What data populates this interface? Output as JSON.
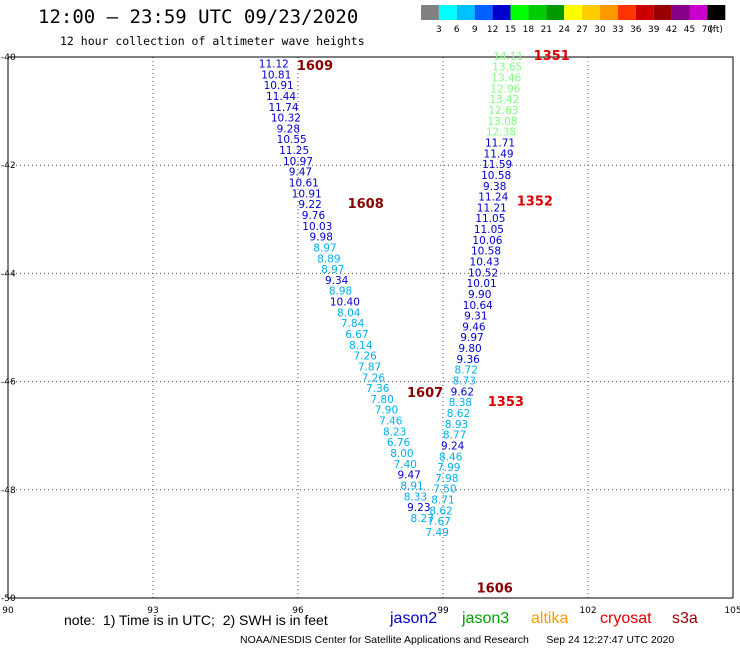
{
  "title": "12:00 – 23:59 UTC 09/23/2020",
  "subtitle": "12 hour collection of altimeter wave heights",
  "note": "note:  1) Time is in UTC;  2) SWH is in feet",
  "credit": "NOAA/NESDIS Center for Satellite Applications and Research      Sep 24 12:27:47 UTC 2020",
  "satellites": [
    {
      "name": "jason2",
      "color": "#0000cc"
    },
    {
      "name": "jason3",
      "color": "#00a000"
    },
    {
      "name": "altika",
      "color": "#ff9900"
    },
    {
      "name": "cryosat",
      "color": "#e00000"
    },
    {
      "name": "s3a",
      "color": "#990000"
    }
  ],
  "chart_data": {
    "type": "scatter",
    "title": "12:00 – 23:59 UTC 09/23/2020",
    "subtitle": "12 hour collection of altimeter wave heights",
    "x_ticks": [
      90,
      93,
      96,
      99,
      102,
      105
    ],
    "y_ticks": [
      -40,
      -42,
      -44,
      -46,
      -48,
      -50
    ],
    "xlim": [
      90,
      105
    ],
    "ylim": [
      -50,
      -40
    ],
    "grid": true,
    "colorbar": {
      "unit": "(ft)",
      "labels": [
        "3",
        "6",
        "9",
        "12",
        "15",
        "18",
        "21",
        "24",
        "27",
        "30",
        "33",
        "36",
        "39",
        "42",
        "45",
        "70"
      ],
      "colors": [
        "#808080",
        "#00ffff",
        "#00c0ff",
        "#0060ff",
        "#0000cc",
        "#00ff00",
        "#00cc00",
        "#009900",
        "#ffff00",
        "#ffcc00",
        "#ff9900",
        "#ff3300",
        "#cc0000",
        "#990000",
        "#880088",
        "#cc00cc",
        "#000000"
      ]
    },
    "passes": [
      {
        "label": "1609",
        "lon": 96.35,
        "lat": -40.17,
        "color": "#880000"
      },
      {
        "label": "1608",
        "lon": 97.4,
        "lat": -42.72,
        "color": "#880000"
      },
      {
        "label": "1607",
        "lon": 98.63,
        "lat": -46.21,
        "color": "#880000"
      },
      {
        "label": "1606",
        "lon": 100.07,
        "lat": -49.82,
        "color": "#880000"
      },
      {
        "label": "1351",
        "lon": 101.25,
        "lat": -39.98,
        "color": "#dd0000"
      },
      {
        "label": "1352",
        "lon": 100.9,
        "lat": -42.67,
        "color": "#dd0000"
      },
      {
        "label": "1353",
        "lon": 100.3,
        "lat": -46.38,
        "color": "#dd0000"
      }
    ],
    "tracks": [
      {
        "name": "track-1608-1609",
        "points": [
          {
            "lon": 95.5,
            "lat": -40.12,
            "v": "11.12",
            "c": "#0000cc"
          },
          {
            "lon": 95.55,
            "lat": -40.32,
            "v": "10.81",
            "c": "#0000cc"
          },
          {
            "lon": 95.6,
            "lat": -40.52,
            "v": "10.91",
            "c": "#0000cc"
          },
          {
            "lon": 95.65,
            "lat": -40.72,
            "v": "11.44",
            "c": "#0000cc"
          },
          {
            "lon": 95.7,
            "lat": -40.92,
            "v": "11.74",
            "c": "#0000cc"
          },
          {
            "lon": 95.75,
            "lat": -41.12,
            "v": "10.32",
            "c": "#0000cc"
          },
          {
            "lon": 95.8,
            "lat": -41.32,
            "v": "9.28",
            "c": "#0000cc"
          },
          {
            "lon": 95.87,
            "lat": -41.52,
            "v": "10.55",
            "c": "#0000cc"
          },
          {
            "lon": 95.92,
            "lat": -41.72,
            "v": "11.25",
            "c": "#0000cc"
          },
          {
            "lon": 96.0,
            "lat": -41.92,
            "v": "10.97",
            "c": "#0000cc"
          },
          {
            "lon": 96.05,
            "lat": -42.12,
            "v": "9.47",
            "c": "#0000cc"
          },
          {
            "lon": 96.12,
            "lat": -42.32,
            "v": "10.61",
            "c": "#0000cc"
          },
          {
            "lon": 96.18,
            "lat": -42.52,
            "v": "10.91",
            "c": "#0000cc"
          },
          {
            "lon": 96.25,
            "lat": -42.72,
            "v": "9.22",
            "c": "#0000cc"
          },
          {
            "lon": 96.32,
            "lat": -42.92,
            "v": "9.76",
            "c": "#0000cc"
          },
          {
            "lon": 96.4,
            "lat": -43.12,
            "v": "10.03",
            "c": "#0000cc"
          },
          {
            "lon": 96.48,
            "lat": -43.32,
            "v": "9.98",
            "c": "#0000cc"
          },
          {
            "lon": 96.56,
            "lat": -43.52,
            "v": "8.97",
            "c": "#00b0ee"
          },
          {
            "lon": 96.64,
            "lat": -43.72,
            "v": "8.89",
            "c": "#00b0ee"
          },
          {
            "lon": 96.72,
            "lat": -43.92,
            "v": "8.97",
            "c": "#00b0ee"
          },
          {
            "lon": 96.8,
            "lat": -44.12,
            "v": "9.34",
            "c": "#0000cc"
          },
          {
            "lon": 96.88,
            "lat": -44.32,
            "v": "8.98",
            "c": "#00b0ee"
          },
          {
            "lon": 96.97,
            "lat": -44.52,
            "v": "10.40",
            "c": "#0000cc"
          },
          {
            "lon": 97.05,
            "lat": -44.72,
            "v": "8.04",
            "c": "#00b0ee"
          },
          {
            "lon": 97.13,
            "lat": -44.92,
            "v": "7.84",
            "c": "#00b0ee"
          },
          {
            "lon": 97.22,
            "lat": -45.12,
            "v": "6.67",
            "c": "#00b0ee"
          },
          {
            "lon": 97.3,
            "lat": -45.32,
            "v": "8.14",
            "c": "#00b0ee"
          },
          {
            "lon": 97.39,
            "lat": -45.52,
            "v": "7.26",
            "c": "#00b0ee"
          },
          {
            "lon": 97.48,
            "lat": -45.72,
            "v": "7.87",
            "c": "#00b0ee"
          },
          {
            "lon": 97.56,
            "lat": -45.92,
            "v": "7.26",
            "c": "#00b0ee"
          },
          {
            "lon": 97.65,
            "lat": -46.12,
            "v": "7.36",
            "c": "#00b0ee"
          },
          {
            "lon": 97.74,
            "lat": -46.32,
            "v": "7.80",
            "c": "#00b0ee"
          },
          {
            "lon": 97.83,
            "lat": -46.52,
            "v": "7.90",
            "c": "#00b0ee"
          },
          {
            "lon": 97.92,
            "lat": -46.72,
            "v": "7.46",
            "c": "#00b0ee"
          },
          {
            "lon": 98.0,
            "lat": -46.92,
            "v": "8.23",
            "c": "#00b0ee"
          },
          {
            "lon": 98.08,
            "lat": -47.12,
            "v": "6.76",
            "c": "#00b0ee"
          },
          {
            "lon": 98.15,
            "lat": -47.32,
            "v": "8.00",
            "c": "#00b0ee"
          },
          {
            "lon": 98.22,
            "lat": -47.52,
            "v": "7.40",
            "c": "#00b0ee"
          },
          {
            "lon": 98.3,
            "lat": -47.72,
            "v": "9.47",
            "c": "#0000cc"
          },
          {
            "lon": 98.36,
            "lat": -47.92,
            "v": "8.91",
            "c": "#00b0ee"
          },
          {
            "lon": 98.43,
            "lat": -48.12,
            "v": "8.33",
            "c": "#00b0ee"
          },
          {
            "lon": 98.5,
            "lat": -48.32,
            "v": "9.23",
            "c": "#0000cc"
          },
          {
            "lon": 98.57,
            "lat": -48.52,
            "v": "8.27",
            "c": "#00b0ee"
          }
        ]
      },
      {
        "name": "track-1351-1353",
        "points": [
          {
            "lon": 100.35,
            "lat": -39.98,
            "v": "14.11",
            "c": "#80ff80"
          },
          {
            "lon": 100.33,
            "lat": -40.18,
            "v": "13.65",
            "c": "#80ff80"
          },
          {
            "lon": 100.31,
            "lat": -40.38,
            "v": "13.46",
            "c": "#80ff80"
          },
          {
            "lon": 100.29,
            "lat": -40.58,
            "v": "12.96",
            "c": "#80ff80"
          },
          {
            "lon": 100.27,
            "lat": -40.78,
            "v": "13.42",
            "c": "#80ff80"
          },
          {
            "lon": 100.25,
            "lat": -40.98,
            "v": "12.63",
            "c": "#80ff80"
          },
          {
            "lon": 100.23,
            "lat": -41.18,
            "v": "13.08",
            "c": "#80ff80"
          },
          {
            "lon": 100.2,
            "lat": -41.38,
            "v": "12.38",
            "c": "#80ff80"
          },
          {
            "lon": 100.18,
            "lat": -41.58,
            "v": "11.71",
            "c": "#0000cc"
          },
          {
            "lon": 100.15,
            "lat": -41.78,
            "v": "11.49",
            "c": "#0000cc"
          },
          {
            "lon": 100.12,
            "lat": -41.98,
            "v": "11.59",
            "c": "#0000cc"
          },
          {
            "lon": 100.1,
            "lat": -42.18,
            "v": "10.58",
            "c": "#0000cc"
          },
          {
            "lon": 100.07,
            "lat": -42.38,
            "v": "9.38",
            "c": "#0000cc"
          },
          {
            "lon": 100.04,
            "lat": -42.58,
            "v": "11.24",
            "c": "#0000cc"
          },
          {
            "lon": 100.01,
            "lat": -42.78,
            "v": "11.21",
            "c": "#0000cc"
          },
          {
            "lon": 99.98,
            "lat": -42.98,
            "v": "11.05",
            "c": "#0000cc"
          },
          {
            "lon": 99.95,
            "lat": -43.18,
            "v": "11.05",
            "c": "#0000cc"
          },
          {
            "lon": 99.92,
            "lat": -43.38,
            "v": "10.06",
            "c": "#0000cc"
          },
          {
            "lon": 99.89,
            "lat": -43.58,
            "v": "10.58",
            "c": "#0000cc"
          },
          {
            "lon": 99.86,
            "lat": -43.78,
            "v": "10.43",
            "c": "#0000cc"
          },
          {
            "lon": 99.83,
            "lat": -43.98,
            "v": "10.52",
            "c": "#0000cc"
          },
          {
            "lon": 99.8,
            "lat": -44.18,
            "v": "10.01",
            "c": "#0000cc"
          },
          {
            "lon": 99.76,
            "lat": -44.38,
            "v": "9.90",
            "c": "#0000cc"
          },
          {
            "lon": 99.72,
            "lat": -44.58,
            "v": "10.64",
            "c": "#0000cc"
          },
          {
            "lon": 99.68,
            "lat": -44.78,
            "v": "9.31",
            "c": "#0000cc"
          },
          {
            "lon": 99.64,
            "lat": -44.98,
            "v": "9.46",
            "c": "#0000cc"
          },
          {
            "lon": 99.6,
            "lat": -45.18,
            "v": "9.97",
            "c": "#0000cc"
          },
          {
            "lon": 99.56,
            "lat": -45.38,
            "v": "9.80",
            "c": "#0000cc"
          },
          {
            "lon": 99.52,
            "lat": -45.58,
            "v": "9.36",
            "c": "#0000cc"
          },
          {
            "lon": 99.48,
            "lat": -45.78,
            "v": "8.72",
            "c": "#00b0ee"
          },
          {
            "lon": 99.44,
            "lat": -45.98,
            "v": "8.73",
            "c": "#00b0ee"
          },
          {
            "lon": 99.4,
            "lat": -46.18,
            "v": "9.62",
            "c": "#0000cc"
          },
          {
            "lon": 99.36,
            "lat": -46.38,
            "v": "8.38",
            "c": "#00b0ee"
          },
          {
            "lon": 99.32,
            "lat": -46.58,
            "v": "8.62",
            "c": "#00b0ee"
          },
          {
            "lon": 99.28,
            "lat": -46.78,
            "v": "8.93",
            "c": "#00b0ee"
          },
          {
            "lon": 99.24,
            "lat": -46.98,
            "v": "8.77",
            "c": "#00b0ee"
          },
          {
            "lon": 99.2,
            "lat": -47.18,
            "v": "9.24",
            "c": "#0000cc"
          },
          {
            "lon": 99.16,
            "lat": -47.38,
            "v": "8.46",
            "c": "#00b0ee"
          },
          {
            "lon": 99.12,
            "lat": -47.58,
            "v": "7.99",
            "c": "#00b0ee"
          },
          {
            "lon": 99.08,
            "lat": -47.78,
            "v": "7.98",
            "c": "#00b0ee"
          },
          {
            "lon": 99.04,
            "lat": -47.98,
            "v": "7.50",
            "c": "#00b0ee"
          },
          {
            "lon": 99.0,
            "lat": -48.18,
            "v": "8.71",
            "c": "#00b0ee"
          },
          {
            "lon": 98.96,
            "lat": -48.38,
            "v": "8.62",
            "c": "#00b0ee"
          },
          {
            "lon": 98.92,
            "lat": -48.58,
            "v": "7.67",
            "c": "#00b0ee"
          },
          {
            "lon": 98.88,
            "lat": -48.78,
            "v": "7.49",
            "c": "#00b0ee"
          }
        ]
      }
    ]
  }
}
